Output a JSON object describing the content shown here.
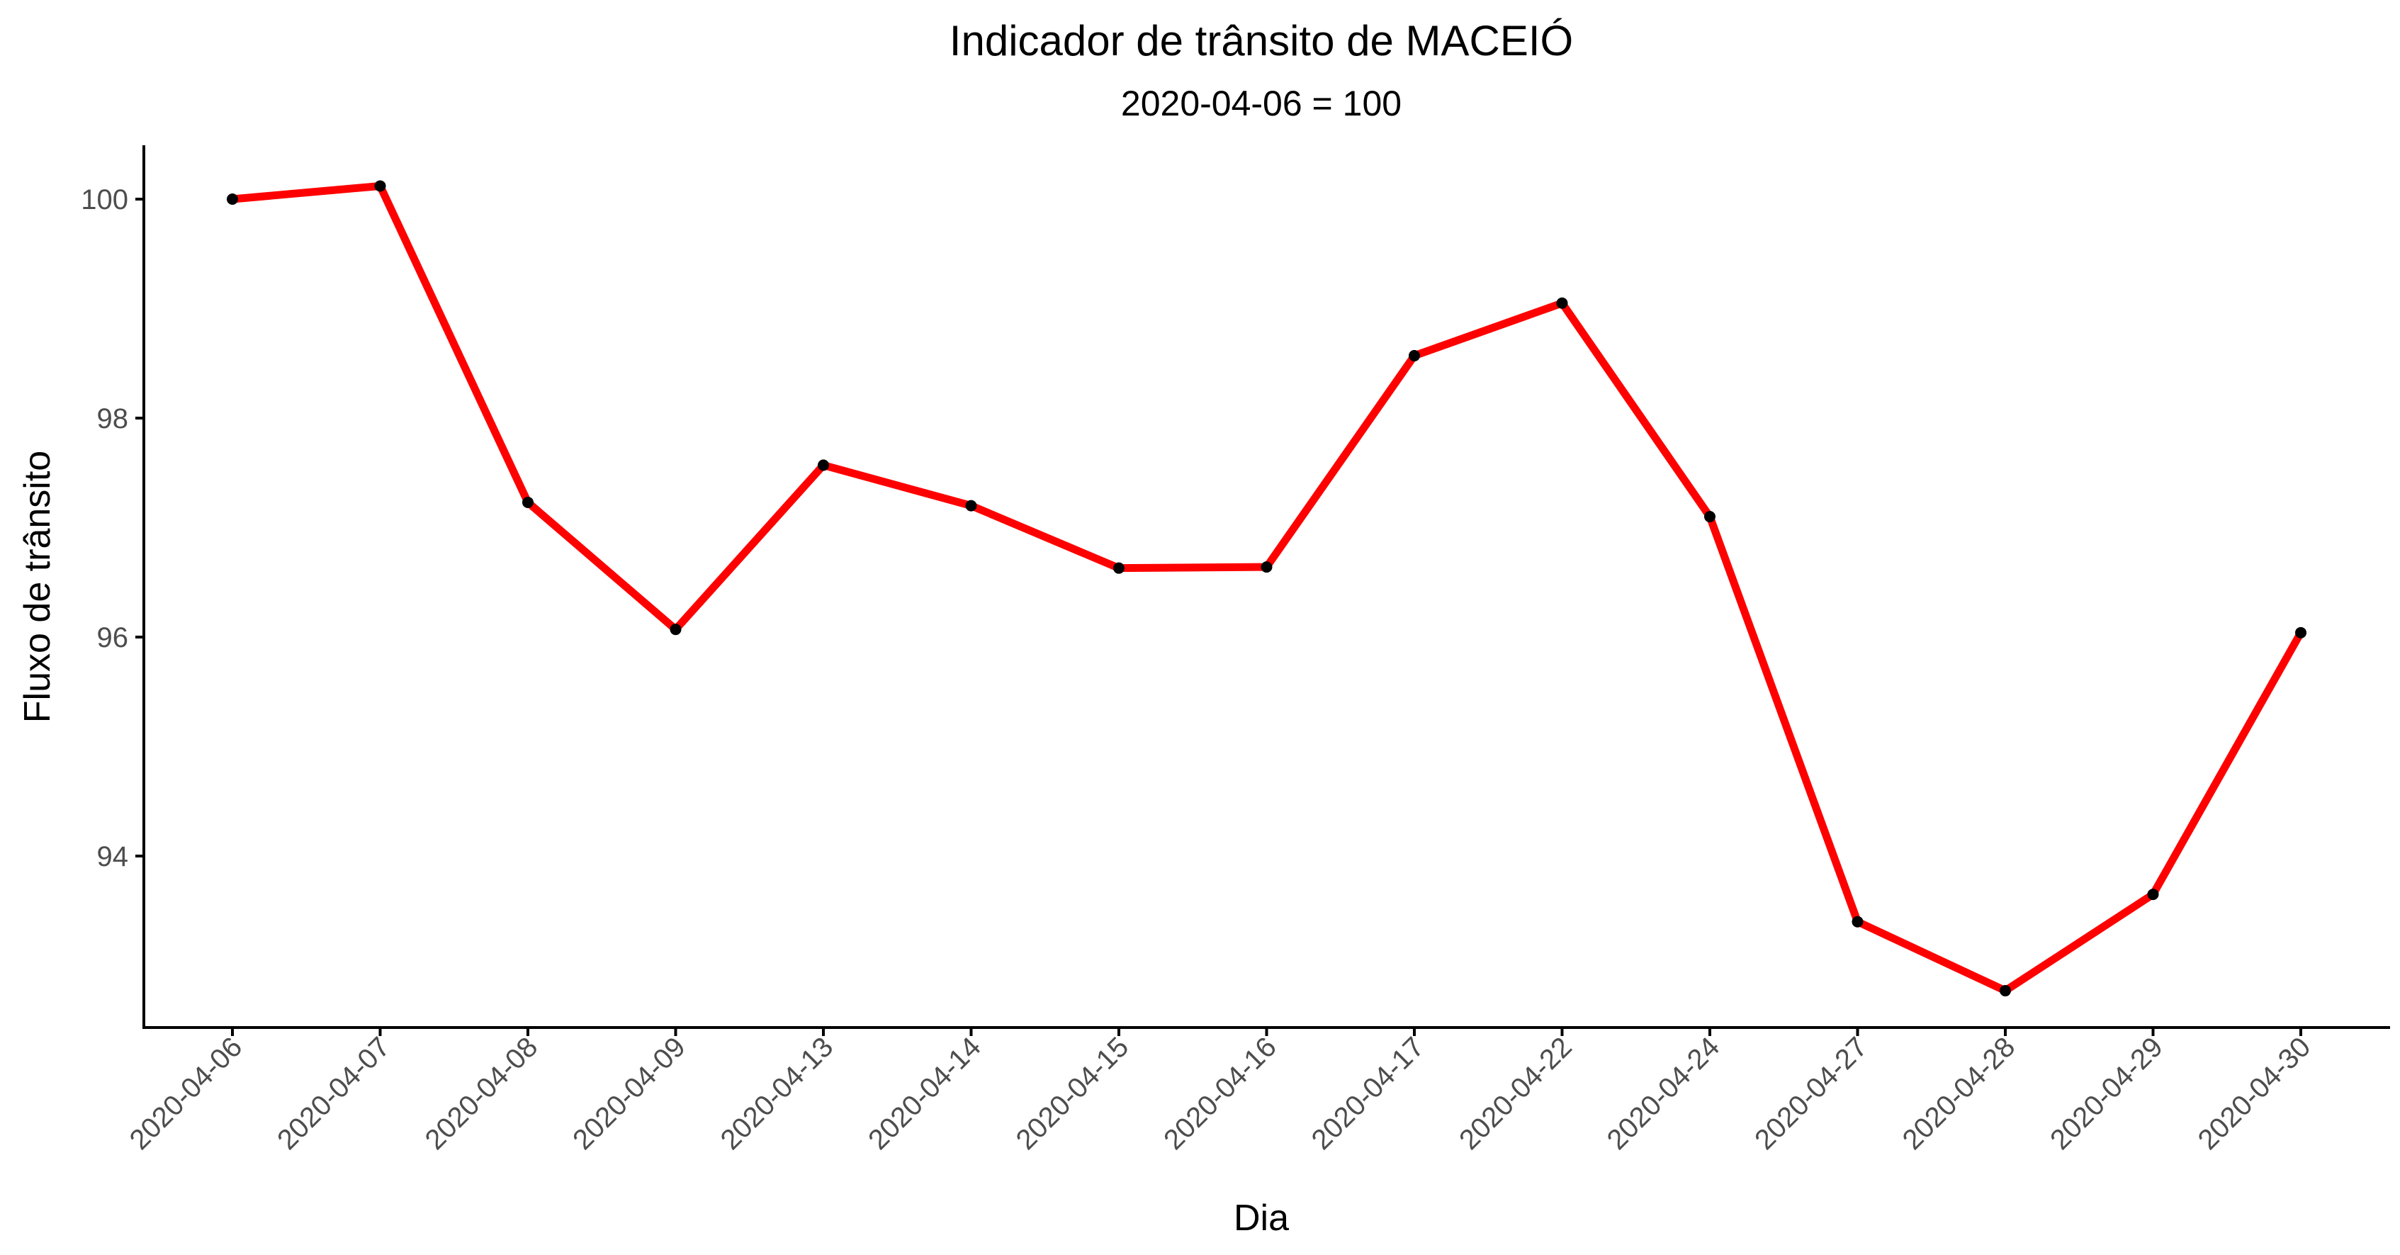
{
  "chart_data": {
    "type": "line",
    "title": "Indicador de trânsito de MACEIÓ",
    "subtitle": "2020-04-06 = 100",
    "xlabel": "Dia",
    "ylabel": "Fluxo de trânsito",
    "categories": [
      "2020-04-06",
      "2020-04-07",
      "2020-04-08",
      "2020-04-09",
      "2020-04-13",
      "2020-04-14",
      "2020-04-15",
      "2020-04-16",
      "2020-04-17",
      "2020-04-22",
      "2020-04-24",
      "2020-04-27",
      "2020-04-28",
      "2020-04-29",
      "2020-04-30"
    ],
    "series": [
      {
        "values": [
          100.0,
          100.12,
          97.23,
          96.07,
          97.57,
          97.2,
          96.63,
          96.64,
          98.57,
          99.05,
          97.1,
          93.4,
          92.77,
          93.65,
          96.04
        ],
        "line_color": "#ff0000",
        "point_color": "#000000"
      }
    ],
    "ylim": [
      92.4,
      100.5
    ],
    "yticks": [
      94,
      96,
      98,
      100
    ],
    "grid": false
  }
}
